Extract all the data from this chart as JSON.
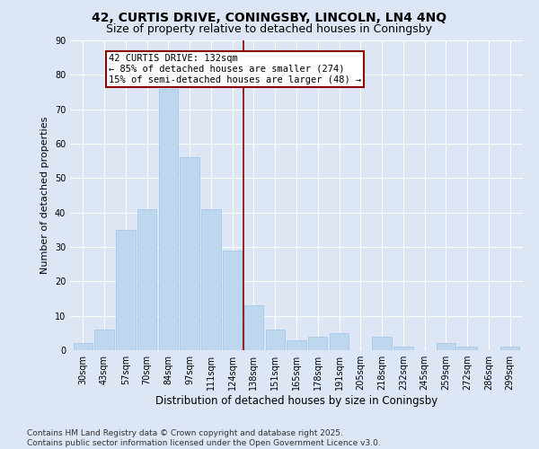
{
  "title1": "42, CURTIS DRIVE, CONINGSBY, LINCOLN, LN4 4NQ",
  "title2": "Size of property relative to detached houses in Coningsby",
  "xlabel": "Distribution of detached houses by size in Coningsby",
  "ylabel": "Number of detached properties",
  "categories": [
    "30sqm",
    "43sqm",
    "57sqm",
    "70sqm",
    "84sqm",
    "97sqm",
    "111sqm",
    "124sqm",
    "138sqm",
    "151sqm",
    "165sqm",
    "178sqm",
    "191sqm",
    "205sqm",
    "218sqm",
    "232sqm",
    "245sqm",
    "259sqm",
    "272sqm",
    "286sqm",
    "299sqm"
  ],
  "values": [
    2,
    6,
    35,
    41,
    76,
    56,
    41,
    29,
    13,
    6,
    3,
    4,
    5,
    0,
    4,
    1,
    0,
    2,
    1,
    0,
    1
  ],
  "bar_color": "#bdd7ee",
  "bar_edge_color": "#9dc3e6",
  "vline_x_index": 7.5,
  "vline_color": "#8b0000",
  "annotation_text": "42 CURTIS DRIVE: 132sqm\n← 85% of detached houses are smaller (274)\n15% of semi-detached houses are larger (48) →",
  "annotation_box_color": "#ffffff",
  "annotation_box_edge_color": "#8b0000",
  "ylim": [
    0,
    90
  ],
  "yticks": [
    0,
    10,
    20,
    30,
    40,
    50,
    60,
    70,
    80,
    90
  ],
  "bg_color": "#dce6f5",
  "fig_bg_color": "#dce6f5",
  "footer1": "Contains HM Land Registry data © Crown copyright and database right 2025.",
  "footer2": "Contains public sector information licensed under the Open Government Licence v3.0.",
  "title1_fontsize": 10,
  "title2_fontsize": 9,
  "xlabel_fontsize": 8.5,
  "ylabel_fontsize": 8,
  "tick_fontsize": 7,
  "annotation_fontsize": 7.5,
  "footer_fontsize": 6.5
}
